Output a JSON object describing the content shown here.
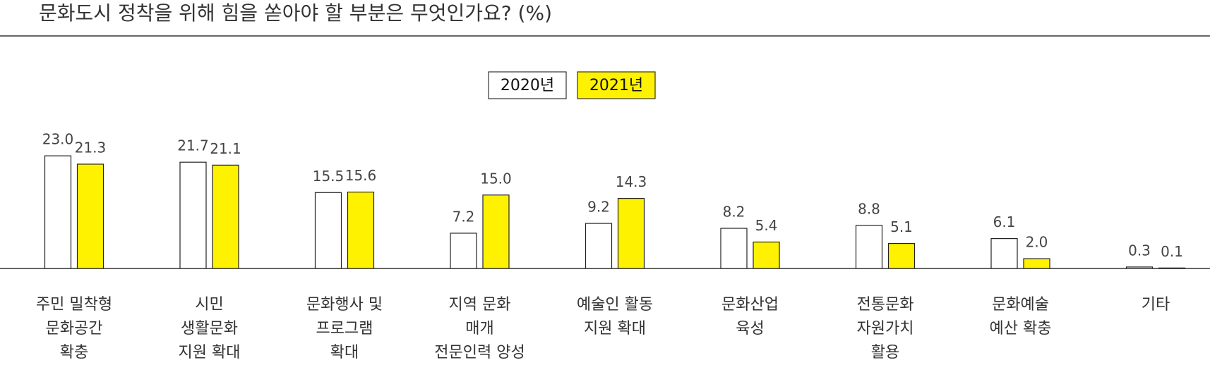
{
  "chart_data": {
    "type": "bar",
    "title": "문화도시 정착을 위해 힘을 쏟아야 할 부분은 무엇인가요? (%)",
    "categories": [
      [
        "주민 밀착형",
        "문화공간",
        "확충"
      ],
      [
        "시민",
        "생활문화",
        "지원 확대"
      ],
      [
        "문화행사 및",
        "프로그램",
        "확대"
      ],
      [
        "지역 문화",
        "매개",
        "전문인력 양성"
      ],
      [
        "예술인 활동",
        "지원 확대"
      ],
      [
        "문화산업",
        "육성"
      ],
      [
        "전통문화",
        "자원가치",
        "활용"
      ],
      [
        "문화예술",
        "예산 확충"
      ],
      [
        "기타"
      ]
    ],
    "series": [
      {
        "name": "2020년",
        "color": "#ffffff",
        "values": [
          23.0,
          21.7,
          15.5,
          7.2,
          9.2,
          8.2,
          8.8,
          6.1,
          0.3
        ],
        "value_labels": [
          "23.0",
          "21.7",
          "15.5",
          "7.2",
          "9.2",
          "8.2",
          "8.8",
          "6.1",
          "0.3"
        ]
      },
      {
        "name": "2021년",
        "color": "#fff200",
        "values": [
          21.3,
          21.1,
          15.6,
          15.0,
          14.3,
          5.4,
          5.1,
          2.0,
          0.1
        ],
        "value_labels": [
          "21.3",
          "21.1",
          "15.6",
          "15.0",
          "14.3",
          "5.4",
          "5.1",
          "2.0",
          "0.1"
        ]
      }
    ]
  }
}
